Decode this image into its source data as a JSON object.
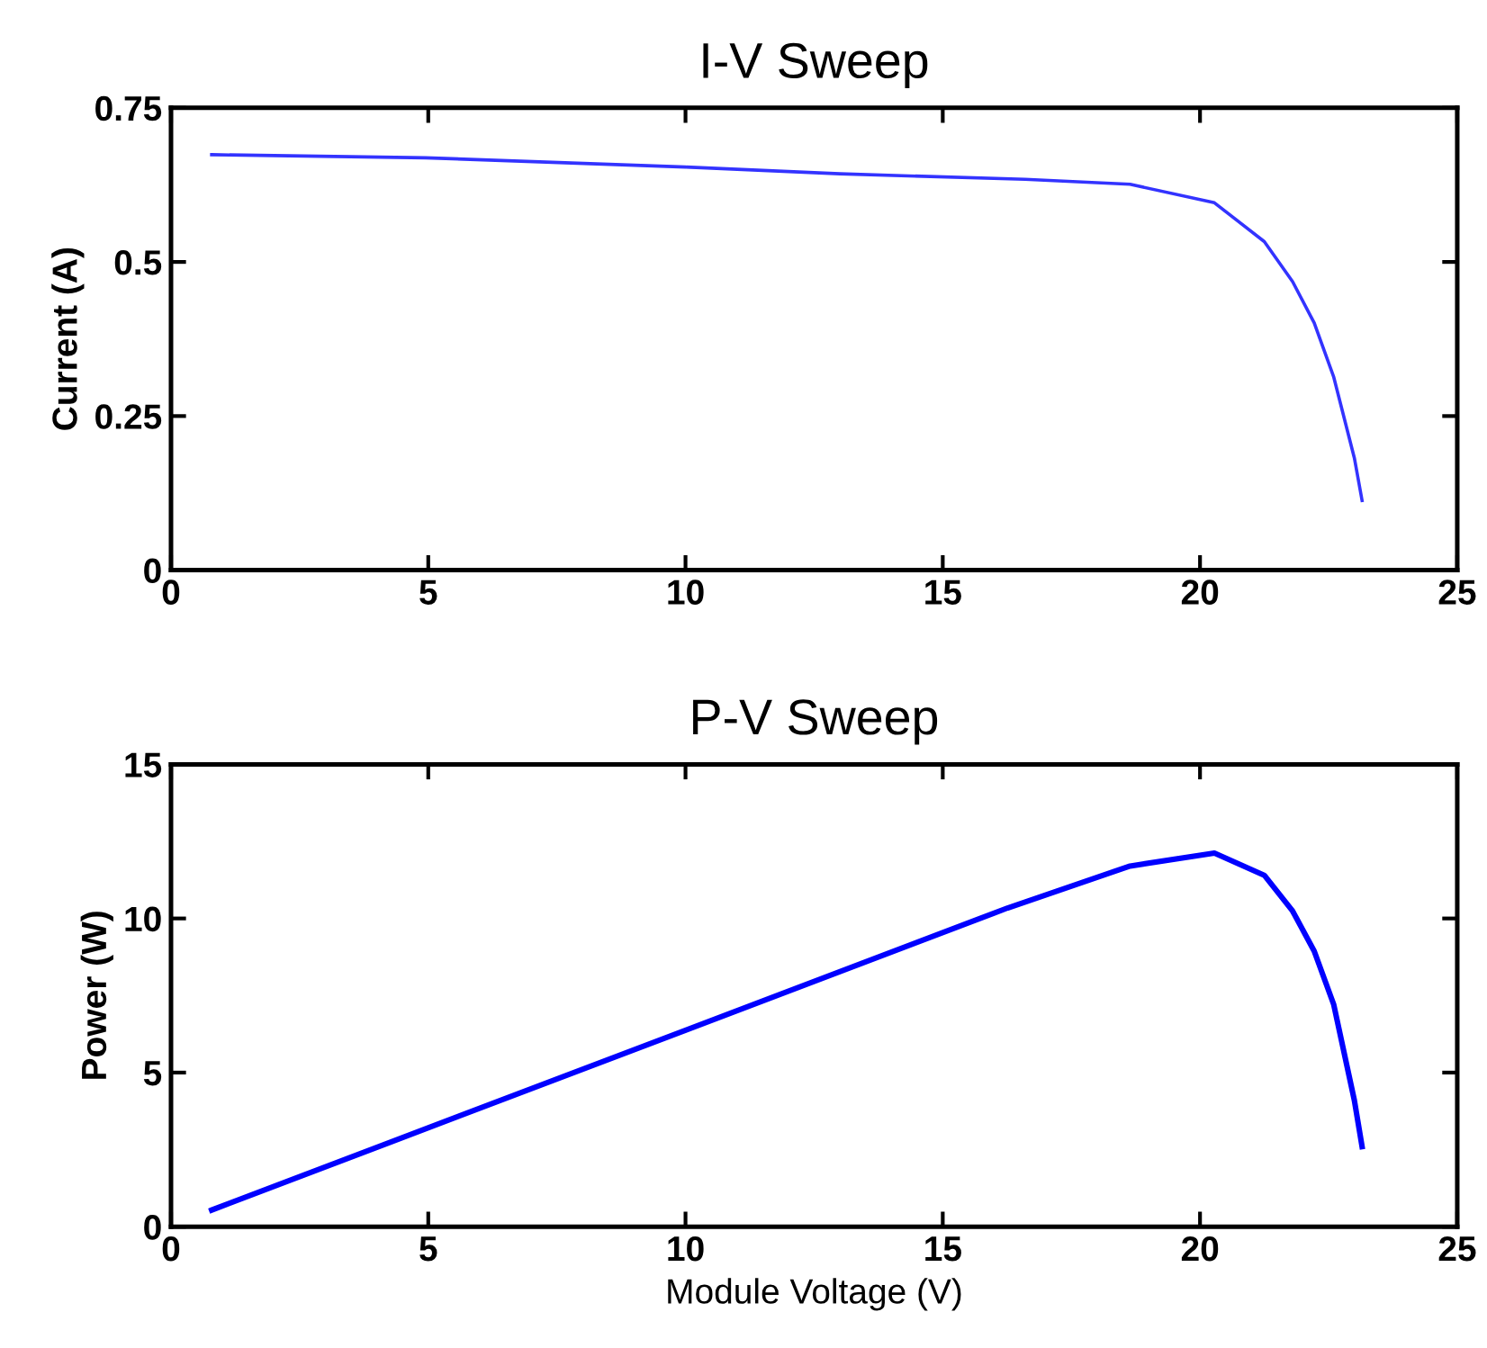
{
  "chart_data": [
    {
      "type": "line",
      "title": "I-V Sweep",
      "ylabel": "Current (A)",
      "xlim": [
        0,
        25
      ],
      "xticks": [
        0,
        5,
        10,
        15,
        20,
        25
      ],
      "ylim": [
        0,
        0.75
      ],
      "yticks": [
        0,
        {
          "value": 0.25,
          "label": "0.25"
        },
        {
          "value": 0.5,
          "label": "0.5"
        },
        {
          "value": 0.75,
          "label": "0.75"
        }
      ],
      "grid": false,
      "series": [
        {
          "color": "#3333ff",
          "x": [
            0.79,
            4.95,
            10,
            13,
            16.6,
            18.64,
            20.28,
            21.25,
            21.8,
            22.22,
            22.6,
            23.0,
            23.15
          ],
          "values": [
            0.674,
            0.669,
            0.654,
            0.643,
            0.634,
            0.626,
            0.596,
            0.533,
            0.468,
            0.401,
            0.313,
            0.182,
            0.113
          ]
        }
      ]
    },
    {
      "type": "line",
      "title": "P-V Sweep",
      "xlabel": "Module Voltage (V)",
      "ylabel": "Power (W)",
      "xlim": [
        0,
        25
      ],
      "xticks": [
        0,
        5,
        10,
        15,
        20,
        25
      ],
      "ylim": [
        0,
        15
      ],
      "yticks": [
        0,
        5,
        10,
        15
      ],
      "grid": false,
      "series": [
        {
          "color": "#0000ff",
          "x": [
            0.79,
            16.26,
            18.64,
            20.28,
            21.25,
            21.8,
            22.22,
            22.6,
            23.0,
            23.15
          ],
          "values": [
            0.54,
            10.34,
            11.7,
            12.12,
            11.4,
            10.24,
            8.94,
            7.2,
            4.1,
            2.6
          ]
        }
      ]
    }
  ]
}
